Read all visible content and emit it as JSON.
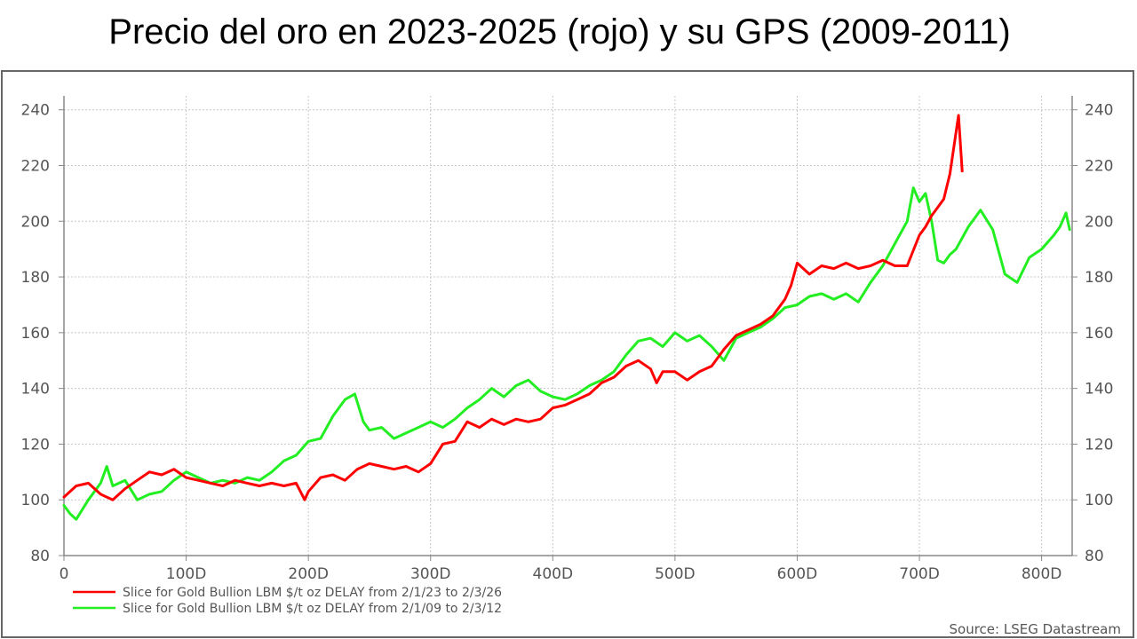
{
  "title": "Precio del oro en 2023-2025 (rojo) y su GPS (2009-2011)",
  "source": "Source: LSEG Datastream",
  "colors": {
    "red": "#ff0000",
    "green": "#22ee22",
    "grid": "#c8c8c8",
    "axis": "#888888",
    "text": "#555555"
  },
  "chart_data": {
    "type": "line",
    "title": "Precio del oro en 2023-2025 (rojo) y su GPS (2009-2011)",
    "xlabel": "",
    "ylabel": "",
    "xlim": [
      0,
      825
    ],
    "ylim": [
      80,
      245
    ],
    "x_ticks": [
      0,
      100,
      200,
      300,
      400,
      500,
      600,
      700,
      800
    ],
    "x_tick_labels": [
      "0",
      "100D",
      "200D",
      "300D",
      "400D",
      "500D",
      "600D",
      "700D",
      "800D"
    ],
    "y_ticks": [
      80,
      100,
      120,
      140,
      160,
      180,
      200,
      220,
      240
    ],
    "y_tick_labels": [
      "80",
      "100",
      "120",
      "140",
      "160",
      "180",
      "200",
      "220",
      "240"
    ],
    "grid": true,
    "legend_position": "bottom-left",
    "series": [
      {
        "name": "Slice for Gold Bullion LBM $/t oz DELAY from 2/1/23 to 2/3/26",
        "color": "#ff0000",
        "x": [
          0,
          10,
          20,
          30,
          40,
          50,
          60,
          70,
          80,
          90,
          100,
          110,
          120,
          130,
          140,
          150,
          160,
          170,
          180,
          190,
          197,
          200,
          210,
          220,
          230,
          240,
          250,
          260,
          270,
          280,
          290,
          300,
          310,
          320,
          330,
          340,
          350,
          360,
          370,
          380,
          390,
          400,
          410,
          420,
          430,
          440,
          450,
          460,
          470,
          480,
          485,
          490,
          500,
          510,
          520,
          530,
          540,
          550,
          560,
          570,
          580,
          590,
          595,
          600,
          605,
          610,
          620,
          630,
          640,
          650,
          660,
          670,
          680,
          690,
          700,
          705,
          710,
          715,
          720,
          725,
          730,
          732,
          735
        ],
        "y": [
          101,
          105,
          106,
          102,
          100,
          104,
          107,
          110,
          109,
          111,
          108,
          107,
          106,
          105,
          107,
          106,
          105,
          106,
          105,
          106,
          100,
          103,
          108,
          109,
          107,
          111,
          113,
          112,
          111,
          112,
          110,
          113,
          120,
          121,
          128,
          126,
          129,
          127,
          129,
          128,
          129,
          133,
          134,
          136,
          138,
          142,
          144,
          148,
          150,
          147,
          142,
          146,
          146,
          143,
          146,
          148,
          154,
          159,
          161,
          163,
          166,
          172,
          177,
          185,
          183,
          181,
          184,
          183,
          185,
          183,
          184,
          186,
          184,
          184,
          195,
          198,
          202,
          205,
          208,
          217,
          232,
          238,
          218
        ]
      },
      {
        "name": "Slice for Gold Bullion LBM $/t oz DELAY from 2/1/09 to 2/3/12",
        "color": "#22ee22",
        "x": [
          0,
          5,
          10,
          20,
          30,
          35,
          40,
          50,
          60,
          70,
          80,
          90,
          100,
          110,
          120,
          130,
          140,
          150,
          160,
          170,
          180,
          190,
          200,
          210,
          220,
          230,
          238,
          245,
          250,
          260,
          270,
          280,
          290,
          300,
          310,
          320,
          330,
          340,
          350,
          360,
          370,
          380,
          390,
          400,
          410,
          420,
          430,
          440,
          450,
          460,
          470,
          480,
          490,
          500,
          510,
          520,
          530,
          540,
          550,
          560,
          570,
          580,
          590,
          600,
          610,
          620,
          630,
          640,
          650,
          660,
          670,
          680,
          690,
          695,
          700,
          705,
          710,
          715,
          720,
          725,
          730,
          740,
          750,
          760,
          770,
          780,
          790,
          800,
          810,
          815,
          820,
          823
        ],
        "y": [
          98,
          95,
          93,
          100,
          106,
          112,
          105,
          107,
          100,
          102,
          103,
          107,
          110,
          108,
          106,
          107,
          106,
          108,
          107,
          110,
          114,
          116,
          121,
          122,
          130,
          136,
          138,
          128,
          125,
          126,
          122,
          124,
          126,
          128,
          126,
          129,
          133,
          136,
          140,
          137,
          141,
          143,
          139,
          137,
          136,
          138,
          141,
          143,
          146,
          152,
          157,
          158,
          155,
          160,
          157,
          159,
          155,
          150,
          158,
          160,
          162,
          165,
          169,
          170,
          173,
          174,
          172,
          174,
          171,
          178,
          184,
          192,
          200,
          212,
          207,
          210,
          200,
          186,
          185,
          188,
          190,
          198,
          204,
          197,
          181,
          178,
          187,
          190,
          195,
          198,
          203,
          197
        ]
      }
    ]
  }
}
